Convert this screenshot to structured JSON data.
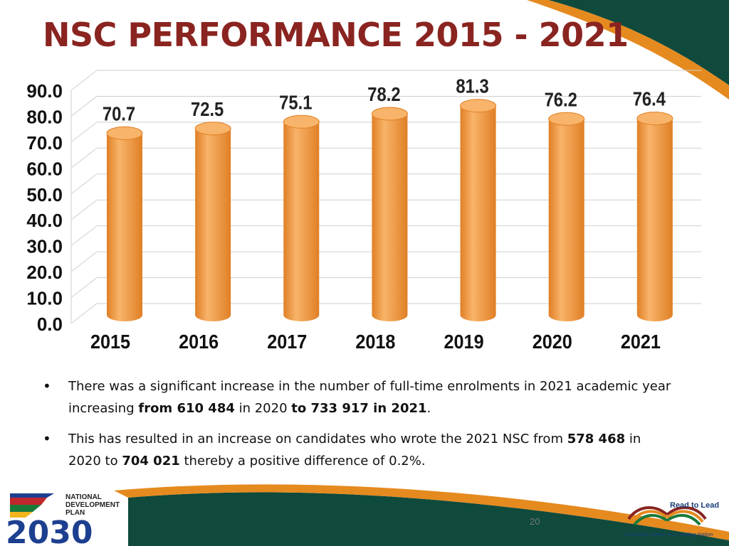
{
  "title": "NSC PERFORMANCE 2015 - 2021",
  "colors": {
    "title": "#8a2420",
    "bar": "#f29b45",
    "bar_light": "#f8b46a",
    "bar_dark": "#e07f25",
    "deco_green": "#0f4a3c",
    "deco_orange": "#e58a1f"
  },
  "chart_data": {
    "type": "bar",
    "style": "3d-cylinder",
    "categories": [
      "2015",
      "2016",
      "2017",
      "2018",
      "2019",
      "2020",
      "2021"
    ],
    "values": [
      70.7,
      72.5,
      75.1,
      78.2,
      81.3,
      76.2,
      76.4
    ],
    "data_labels": [
      "70.7",
      "72.5",
      "75.1",
      "78.2",
      "81.3",
      "76.2",
      "76.4"
    ],
    "y_ticks": [
      "0.0",
      "10.0",
      "20.0",
      "30.0",
      "40.0",
      "50.0",
      "60.0",
      "70.0",
      "80.0",
      "90.0"
    ],
    "ylim": [
      0,
      90
    ],
    "grid": true,
    "legend": "none",
    "xlabel": "",
    "ylabel": ""
  },
  "bullets": [
    {
      "segments": [
        {
          "text": "There was a significant increase in the number of full-time enrolments in 2021 academic year increasing ",
          "bold": false
        },
        {
          "text": "from 610 484",
          "bold": true
        },
        {
          "text": " in 2020 ",
          "bold": false
        },
        {
          "text": "to 733 917 in 2021",
          "bold": true
        },
        {
          "text": ".",
          "bold": false
        }
      ]
    },
    {
      "segments": [
        {
          "text": "This has resulted in an increase on candidates who wrote the 2021 NSC from ",
          "bold": false
        },
        {
          "text": "578 468",
          "bold": true
        },
        {
          "text": " in 2020 to ",
          "bold": false
        },
        {
          "text": "704 021",
          "bold": true
        },
        {
          "text": " thereby a positive difference of 0.2%.",
          "bold": false
        }
      ]
    }
  ],
  "page_number": "20",
  "logo_ndp": {
    "line1": "NATIONAL",
    "line2": "DEVELOPMENT",
    "line3": "PLAN",
    "year": "2030"
  },
  "logo_rtl": {
    "title": "Read to Lead",
    "tagline": "A Reading Nation is a Leading Nation"
  }
}
